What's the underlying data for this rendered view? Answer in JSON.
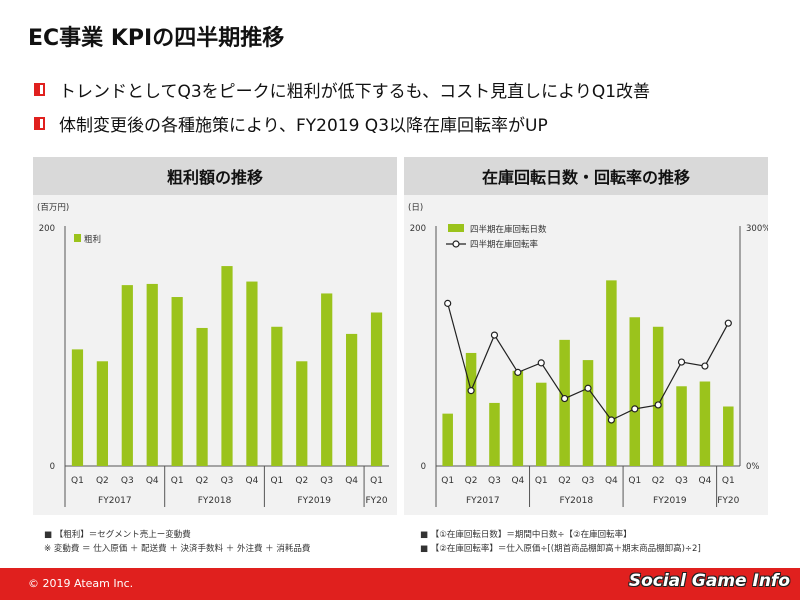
{
  "title": "EC事業 KPIの四半期推移",
  "bullets": [
    "トレンドとしてQ3をピークに粗利が低下するも、コスト見直しによりQ1改善",
    "体制変更後の各種施策により、FY2019 Q3以降在庫回転率がUP"
  ],
  "colors": {
    "accent": "#e0201e",
    "bar": "#9bc31c",
    "panel_bg": "#f2f2f2",
    "header_bg": "#d9d9d9"
  },
  "chart_data": [
    {
      "type": "bar",
      "title": "粗利額の推移",
      "unit_label": "(百万円)",
      "categories": [
        "Q1",
        "Q2",
        "Q3",
        "Q4",
        "Q1",
        "Q2",
        "Q3",
        "Q4",
        "Q1",
        "Q2",
        "Q3",
        "Q4",
        "Q1"
      ],
      "groups": [
        {
          "label": "FY2017",
          "count": 4
        },
        {
          "label": "FY2018",
          "count": 4
        },
        {
          "label": "FY2019",
          "count": 4
        },
        {
          "label": "FY20",
          "count": 1
        }
      ],
      "series": [
        {
          "name": "粗利",
          "values": [
            98,
            88,
            152,
            153,
            142,
            116,
            168,
            155,
            117,
            88,
            145,
            111,
            129
          ]
        }
      ],
      "ylim": [
        0,
        200
      ],
      "yticks": [
        "0",
        "200"
      ],
      "grid": false,
      "legend_position": "top-left"
    },
    {
      "type": "bar",
      "title": "在庫回転日数・回転率の推移",
      "unit_label": "(日)",
      "categories": [
        "Q1",
        "Q2",
        "Q3",
        "Q4",
        "Q1",
        "Q2",
        "Q3",
        "Q4",
        "Q1",
        "Q2",
        "Q3",
        "Q4",
        "Q1"
      ],
      "groups": [
        {
          "label": "FY2017",
          "count": 4
        },
        {
          "label": "FY2018",
          "count": 4
        },
        {
          "label": "FY2019",
          "count": 4
        },
        {
          "label": "FY20",
          "count": 1
        }
      ],
      "series": [
        {
          "name": "四半期在庫回転日数",
          "type": "bar",
          "axis": "left",
          "values": [
            44,
            95,
            53,
            80,
            70,
            106,
            89,
            156,
            125,
            117,
            67,
            71,
            50
          ]
        },
        {
          "name": "四半期在庫回転率",
          "type": "line",
          "axis": "right",
          "values": [
            205,
            95,
            165,
            118,
            130,
            85,
            98,
            58,
            72,
            77,
            131,
            126,
            180
          ]
        }
      ],
      "ylim_left": [
        0,
        200
      ],
      "ylim_right": [
        0,
        300
      ],
      "yticks_left": [
        "0",
        "200"
      ],
      "yticks_right": [
        "0%",
        "300%"
      ],
      "grid": false,
      "legend_position": "top-left"
    }
  ],
  "notes_left": [
    "■ 【粗利】＝セグメント売上ー変動費",
    "※ 変動費 ＝ 仕入原価 ＋ 配送費 ＋ 決済手数料 ＋ 外注費 ＋ 消耗品費"
  ],
  "notes_right": [
    "■ 【①在庫回転日数】＝期間中日数÷【②在庫回転率】",
    "■ 【②在庫回転率】＝仕入原価÷[(期首商品棚卸高＋期末商品棚卸高)÷2]"
  ],
  "footer": {
    "copyright": "© 2019 Ateam Inc.",
    "watermark": "Social Game Info"
  }
}
